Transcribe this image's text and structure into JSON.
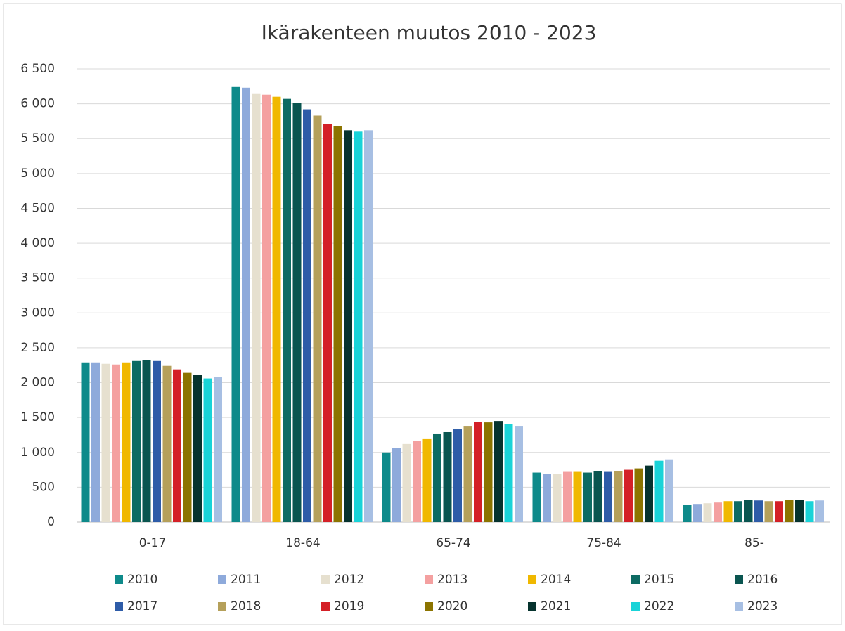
{
  "chart_data": {
    "type": "bar",
    "title": "Ikärakenteen muutos 2010 - 2023",
    "categories": [
      "0-17",
      "18-64",
      "65-74",
      "75-84",
      "85-"
    ],
    "series": [
      {
        "name": "2010",
        "color": "#0e8a8a",
        "values": [
          2290,
          6240,
          1000,
          710,
          250
        ]
      },
      {
        "name": "2011",
        "color": "#8eaadb",
        "values": [
          2290,
          6230,
          1060,
          690,
          260
        ]
      },
      {
        "name": "2012",
        "color": "#e6e0cf",
        "values": [
          2270,
          6140,
          1120,
          690,
          270
        ]
      },
      {
        "name": "2013",
        "color": "#f4a0a0",
        "values": [
          2260,
          6130,
          1160,
          720,
          280
        ]
      },
      {
        "name": "2014",
        "color": "#f0b800",
        "values": [
          2290,
          6100,
          1190,
          720,
          300
        ]
      },
      {
        "name": "2015",
        "color": "#0d6b63",
        "values": [
          2310,
          6070,
          1270,
          710,
          300
        ]
      },
      {
        "name": "2016",
        "color": "#0a5550",
        "values": [
          2320,
          6010,
          1290,
          730,
          320
        ]
      },
      {
        "name": "2017",
        "color": "#2e5ca8",
        "values": [
          2310,
          5920,
          1330,
          720,
          310
        ]
      },
      {
        "name": "2018",
        "color": "#b5a05a",
        "values": [
          2240,
          5830,
          1380,
          730,
          300
        ]
      },
      {
        "name": "2019",
        "color": "#d42027",
        "values": [
          2190,
          5710,
          1440,
          750,
          300
        ]
      },
      {
        "name": "2020",
        "color": "#8c7400",
        "values": [
          2140,
          5680,
          1430,
          770,
          320
        ]
      },
      {
        "name": "2021",
        "color": "#06332e",
        "values": [
          2110,
          5620,
          1450,
          810,
          320
        ]
      },
      {
        "name": "2022",
        "color": "#19d3d8",
        "values": [
          2060,
          5600,
          1410,
          880,
          300
        ]
      },
      {
        "name": "2023",
        "color": "#a7bfe3",
        "values": [
          2080,
          5620,
          1380,
          900,
          310
        ]
      }
    ],
    "ylim": [
      0,
      6500
    ],
    "yticks": [
      0,
      500,
      {
        "value": 1000,
        "label": "1 000"
      },
      {
        "value": 1500,
        "label": "1 500"
      },
      {
        "value": 2000,
        "label": "2 000"
      },
      {
        "value": 2500,
        "label": "2 500"
      },
      {
        "value": 3000,
        "label": "3 000"
      },
      {
        "value": 3500,
        "label": "3 500"
      },
      {
        "value": 4000,
        "label": "4 000"
      },
      {
        "value": 4500,
        "label": "4 500"
      },
      {
        "value": 5000,
        "label": "5 000"
      },
      {
        "value": 5500,
        "label": "5 500"
      },
      {
        "value": 6000,
        "label": "6 000"
      },
      {
        "value": 6500,
        "label": "6 500"
      }
    ],
    "grid": true,
    "legend": "bottom"
  }
}
